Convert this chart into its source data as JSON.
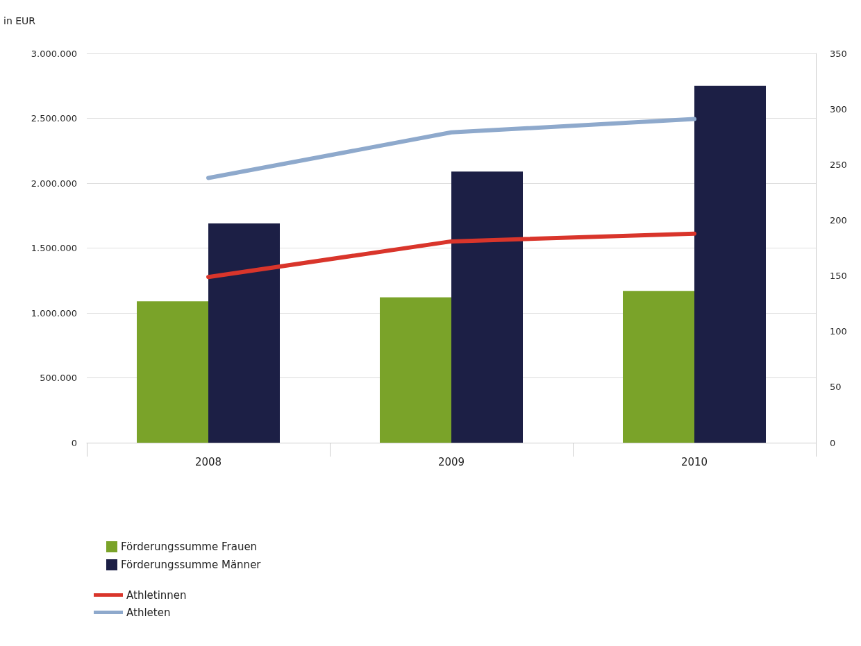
{
  "chart_data": {
    "type": "bar",
    "ylabel": "in EUR",
    "categories": [
      "2008",
      "2009",
      "2010"
    ],
    "series": [
      {
        "name": "Förderungssumme Frauen",
        "color": "#7aa329",
        "values": [
          1090000,
          1120000,
          1170000
        ]
      },
      {
        "name": "Förderungssumme Männer",
        "color": "#1c1f45",
        "values": [
          1690000,
          2090000,
          2750000
        ]
      },
      {
        "name": "Athletinnen",
        "type": "line",
        "axis": "y2",
        "color": "#d9352b",
        "values": [
          149,
          181,
          188
        ]
      },
      {
        "name": "Athleten",
        "type": "line",
        "axis": "y2",
        "color": "#8ea9cc",
        "values": [
          238,
          279,
          291
        ]
      }
    ],
    "ylim": [
      0,
      3000000
    ],
    "yticks": [
      {
        "value": 0,
        "label": "0"
      },
      {
        "value": 500000,
        "label": "500.000"
      },
      {
        "value": 1000000,
        "label": "1.000.000"
      },
      {
        "value": 1500000,
        "label": "1.500.000"
      },
      {
        "value": 2000000,
        "label": "2.000.000"
      },
      {
        "value": 2500000,
        "label": "2.500.000"
      },
      {
        "value": 3000000,
        "label": "3.000.000"
      }
    ],
    "y2lim": [
      0,
      350
    ],
    "y2ticks": [
      0,
      50,
      100,
      150,
      200,
      250,
      300,
      350
    ],
    "grid": "y",
    "legend": "bottom left",
    "marker": "none",
    "line_style": "solid"
  }
}
